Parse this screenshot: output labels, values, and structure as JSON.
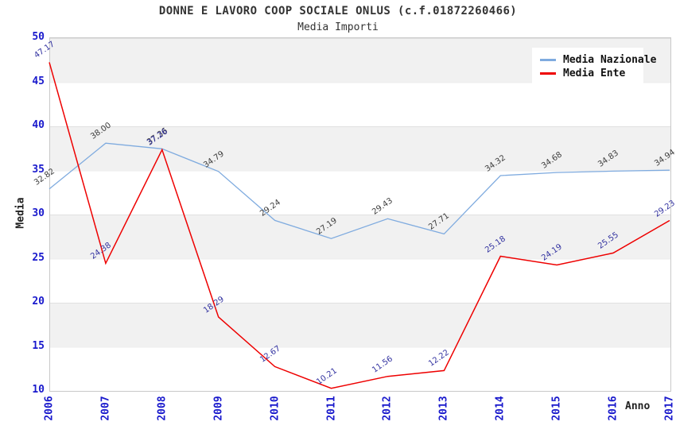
{
  "title": "DONNE E LAVORO COOP SOCIALE ONLUS (c.f.01872260466)",
  "subtitle": "Media Importi",
  "axes": {
    "y_title": "Media",
    "x_title": "Anno"
  },
  "chart_data": {
    "type": "line",
    "title": "DONNE E LAVORO COOP SOCIALE ONLUS (c.f.01872260466)",
    "subtitle": "Media Importi",
    "xlabel": "Anno",
    "ylabel": "Media",
    "x": [
      "2006",
      "2007",
      "2008",
      "2009",
      "2010",
      "2011",
      "2012",
      "2013",
      "2014",
      "2015",
      "2016",
      "2017"
    ],
    "y_ticks": [
      50,
      45,
      40,
      35,
      30,
      25,
      20,
      15,
      10
    ],
    "ylim": [
      10,
      50
    ],
    "grid": "horizontal gridlines every 5 units with alternating gray/white bands",
    "legend_position": "top-right",
    "series": [
      {
        "name": "Media Nazionale",
        "color": "#7fabdf",
        "label_color": "#3c3c3c",
        "values": [
          32.82,
          38.0,
          37.36,
          34.79,
          29.24,
          27.19,
          29.43,
          27.71,
          34.32,
          34.68,
          34.83,
          34.94
        ]
      },
      {
        "name": "Media Ente",
        "color": "#ee0000",
        "label_color": "#3232a0",
        "values": [
          47.17,
          24.38,
          37.26,
          18.29,
          12.67,
          10.21,
          11.56,
          12.22,
          25.18,
          24.19,
          25.55,
          29.23
        ]
      }
    ]
  }
}
